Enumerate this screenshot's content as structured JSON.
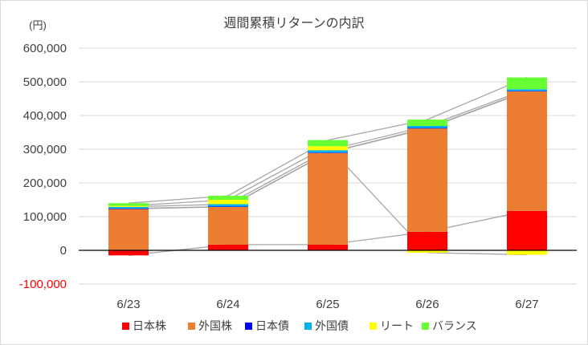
{
  "chart_data": {
    "type": "bar",
    "stacked": true,
    "title": "週間累積リターンの内訳",
    "y_unit": "(円)",
    "categories": [
      "6/23",
      "6/24",
      "6/25",
      "6/26",
      "6/27"
    ],
    "ylim": [
      -100000,
      600000
    ],
    "y_ticks": [
      {
        "value": 600000,
        "label": "600,000"
      },
      {
        "value": 500000,
        "label": "500,000"
      },
      {
        "value": 400000,
        "label": "400,000"
      },
      {
        "value": 300000,
        "label": "300,000"
      },
      {
        "value": 200000,
        "label": "200,000"
      },
      {
        "value": 100000,
        "label": "100,000"
      },
      {
        "value": 0,
        "label": "0"
      },
      {
        "value": -100000,
        "label": "-100,000"
      }
    ],
    "negative_tick_color": "#ff0000",
    "grid": true,
    "legend_position": "bottom",
    "series_lines": true,
    "series": [
      {
        "name": "日本株",
        "color": "#ff0000",
        "values": [
          -15000,
          17000,
          17000,
          55000,
          117000
        ]
      },
      {
        "name": "外国株",
        "color": "#ed7d31",
        "values": [
          123000,
          112000,
          272000,
          307000,
          355000
        ]
      },
      {
        "name": "日本債",
        "color": "#0000ff",
        "values": [
          1000,
          1000,
          1000,
          1000,
          1000
        ]
      },
      {
        "name": "外国債",
        "color": "#00b0f0",
        "values": [
          5000,
          7000,
          7000,
          6000,
          5000
        ]
      },
      {
        "name": "リート",
        "color": "#ffff00",
        "values": [
          3000,
          13000,
          12000,
          -7000,
          -13000
        ]
      },
      {
        "name": "バランス",
        "color": "#66ff33",
        "values": [
          8000,
          12000,
          18000,
          19000,
          35000
        ]
      }
    ]
  }
}
